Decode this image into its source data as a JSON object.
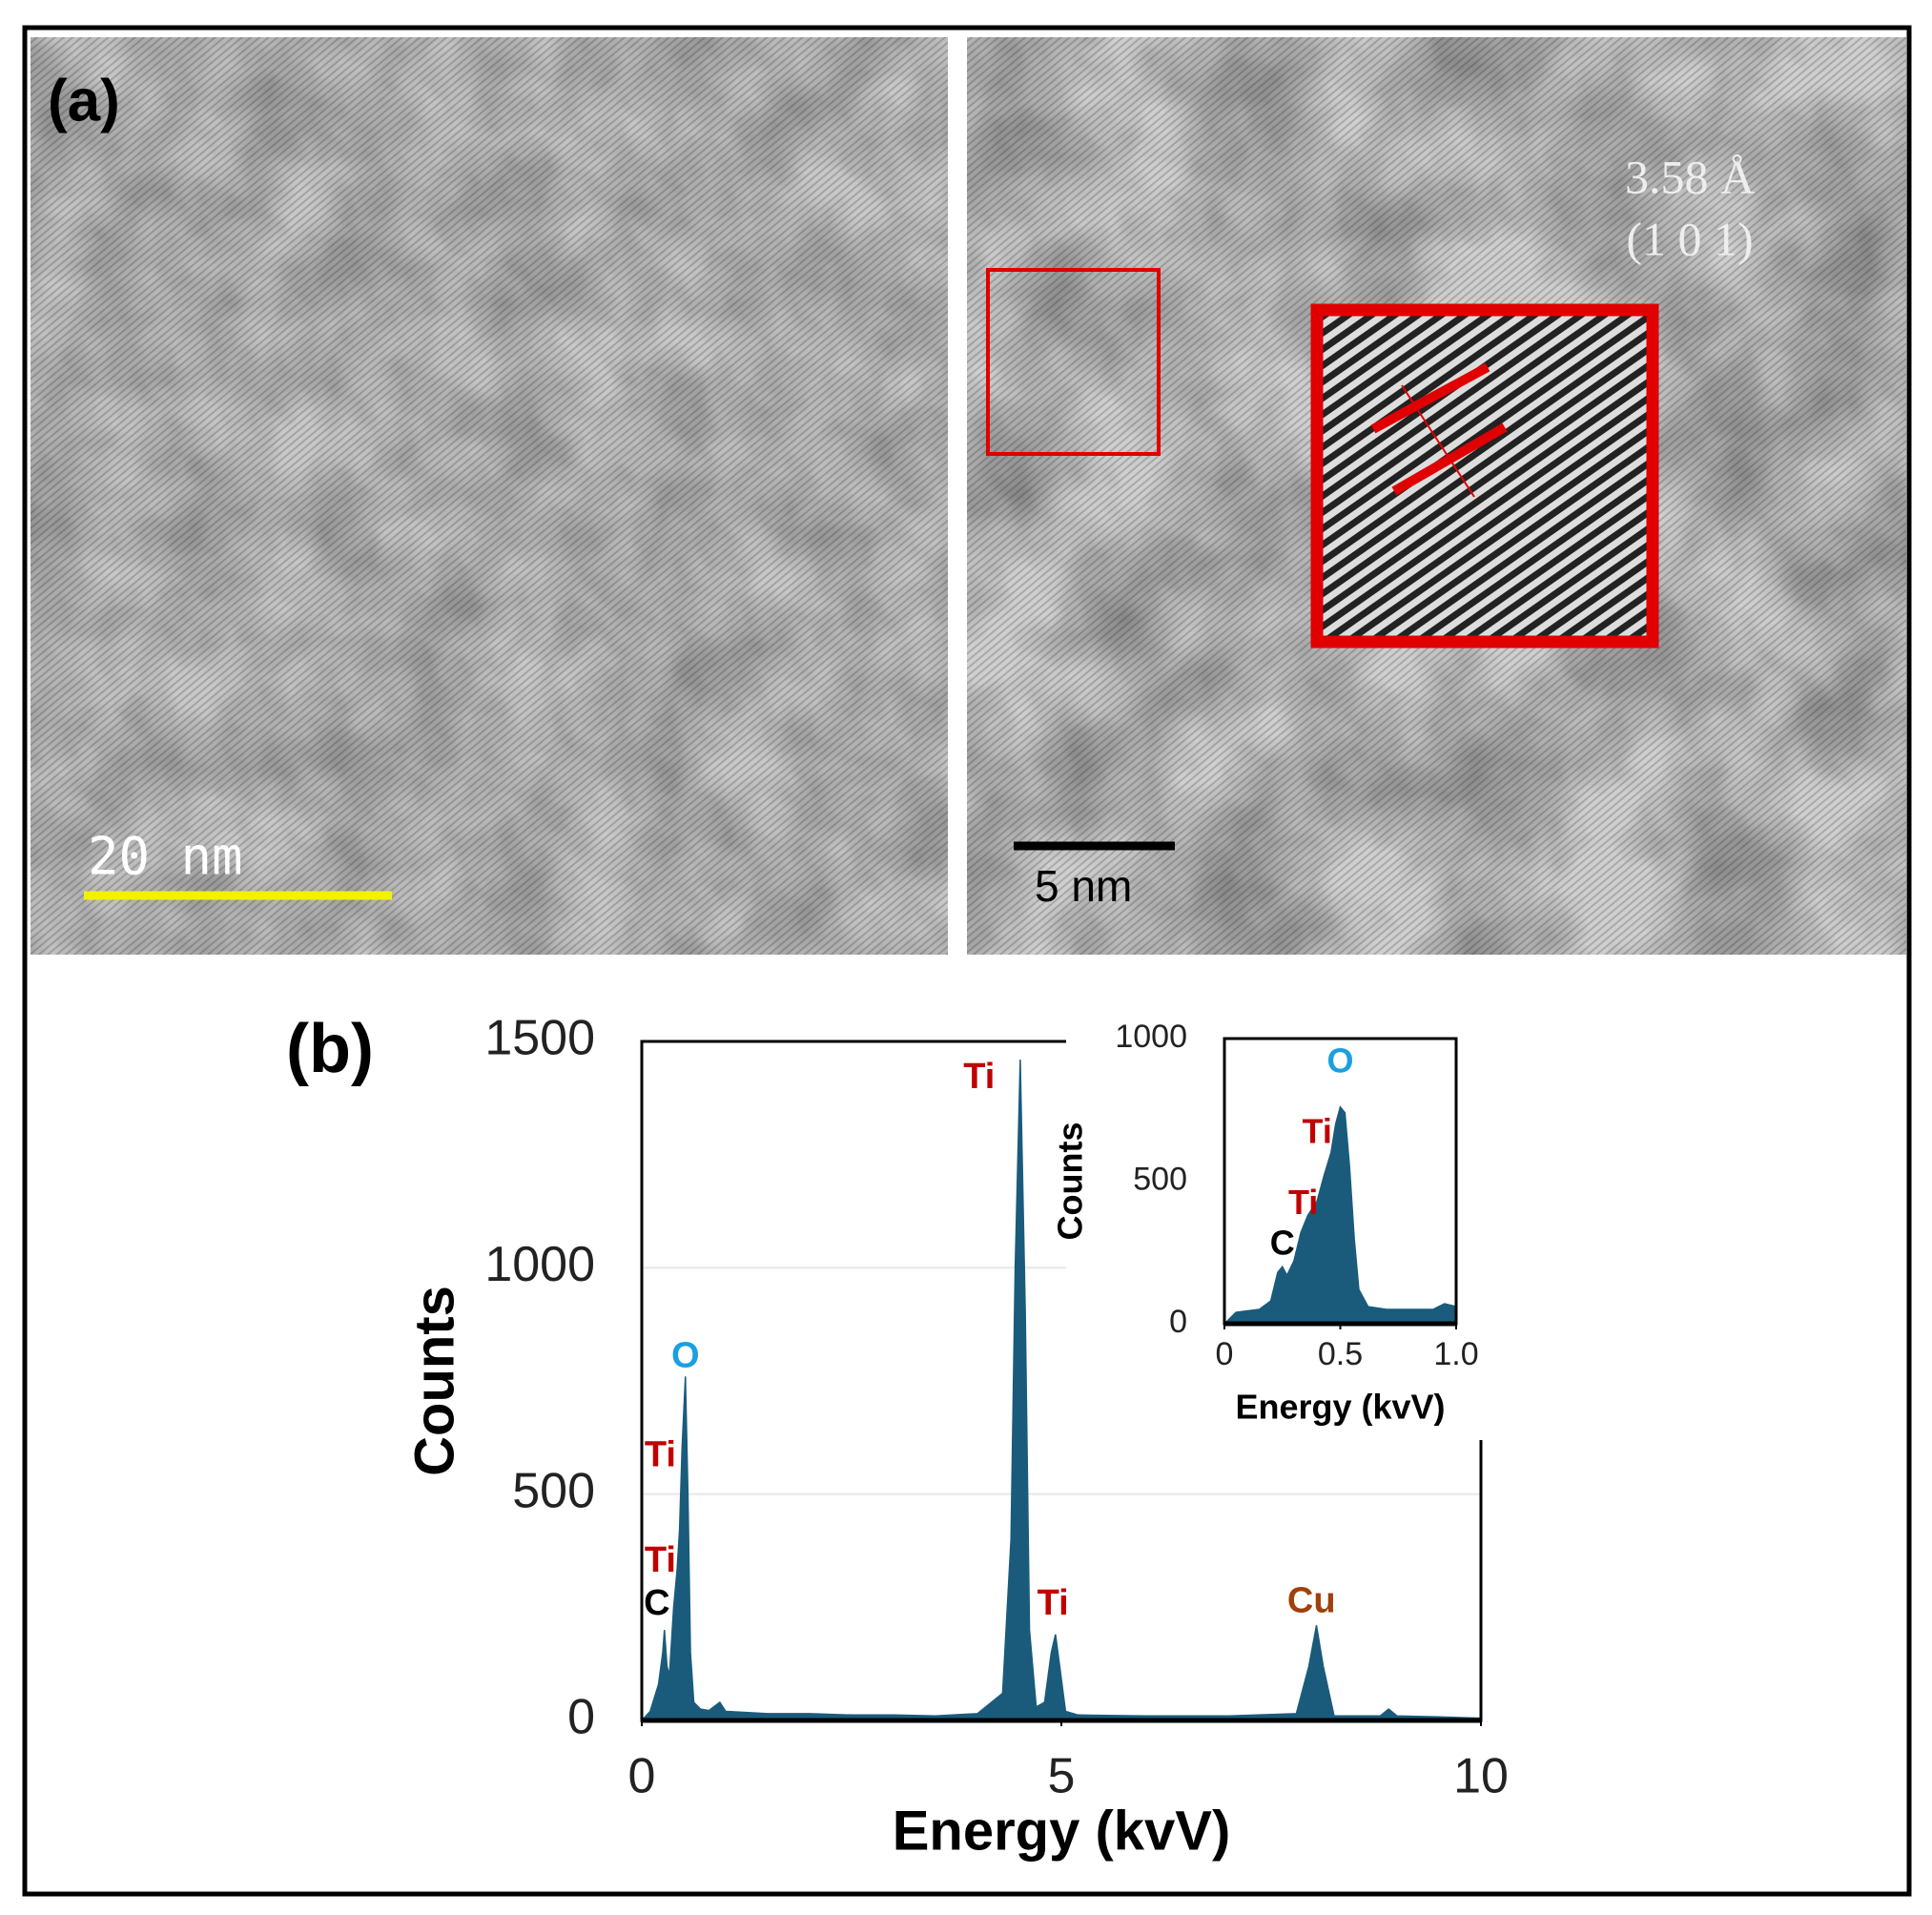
{
  "panel_a": {
    "label": "(a)",
    "scale_left": "20 nm",
    "scale_right": "5 nm",
    "d_spacing": "3.58 Å",
    "plane": "(1 0 1)"
  },
  "panel_b": {
    "label": "(b)"
  },
  "chart_data": [
    {
      "type": "area",
      "x_label": "Energy (kvV)",
      "y_label": "Counts",
      "color": "#1a5b7c",
      "xlim": [
        0,
        10
      ],
      "ylim": [
        0,
        1500
      ],
      "xticks": [
        0,
        5,
        10
      ],
      "yticks": [
        0,
        500,
        1000,
        1500
      ],
      "grid": true,
      "x": [
        0,
        0.1,
        0.2,
        0.25,
        0.27,
        0.3,
        0.33,
        0.38,
        0.42,
        0.45,
        0.48,
        0.52,
        0.55,
        0.58,
        0.62,
        0.7,
        0.8,
        0.93,
        1.0,
        1.5,
        2,
        2.5,
        3,
        3.5,
        4,
        4.3,
        4.4,
        4.45,
        4.51,
        4.57,
        4.62,
        4.7,
        4.8,
        4.88,
        4.93,
        4.98,
        5.05,
        5.2,
        6,
        7,
        7.8,
        7.95,
        8.04,
        8.12,
        8.25,
        8.8,
        8.9,
        9,
        9.5,
        10
      ],
      "values": [
        0,
        20,
        80,
        150,
        200,
        120,
        100,
        250,
        330,
        420,
        600,
        760,
        500,
        150,
        40,
        25,
        22,
        40,
        20,
        15,
        15,
        12,
        12,
        10,
        15,
        60,
        400,
        1000,
        1460,
        900,
        200,
        30,
        40,
        150,
        190,
        120,
        20,
        12,
        10,
        10,
        15,
        120,
        210,
        120,
        10,
        10,
        25,
        10,
        8,
        5
      ],
      "annotations": [
        {
          "text": "Ti",
          "x": 4.02,
          "y": 1418,
          "color": "#c00000"
        },
        {
          "text": "O",
          "x": 0.52,
          "y": 802,
          "color": "#1aa0e0"
        },
        {
          "text": "Ti",
          "x": 0.22,
          "y": 583,
          "color": "#c00000"
        },
        {
          "text": "Ti",
          "x": 0.22,
          "y": 350,
          "color": "#c00000"
        },
        {
          "text": "C",
          "x": 0.18,
          "y": 255,
          "color": "#000000"
        },
        {
          "text": "Ti",
          "x": 4.9,
          "y": 255,
          "color": "#c00000"
        },
        {
          "text": "Cu",
          "x": 7.98,
          "y": 260,
          "color": "#a0400a"
        }
      ]
    },
    {
      "type": "area",
      "x_label": "Energy (kvV)",
      "y_label": "Counts",
      "color": "#1a5b7c",
      "xlim": [
        0,
        1
      ],
      "ylim": [
        0,
        1000
      ],
      "xticks": [
        0,
        0.5,
        {
          "value": 1,
          "label": "1.0"
        }
      ],
      "yticks": [
        0,
        500,
        1000
      ],
      "grid": false,
      "x": [
        0,
        0.05,
        0.1,
        0.15,
        0.2,
        0.23,
        0.25,
        0.27,
        0.3,
        0.33,
        0.36,
        0.4,
        0.43,
        0.46,
        0.48,
        0.5,
        0.52,
        0.54,
        0.56,
        0.58,
        0.62,
        0.7,
        0.8,
        0.9,
        0.95,
        1.0
      ],
      "values": [
        0,
        40,
        45,
        50,
        80,
        180,
        200,
        170,
        220,
        320,
        380,
        430,
        520,
        600,
        700,
        760,
        740,
        550,
        300,
        120,
        60,
        50,
        50,
        50,
        70,
        60
      ],
      "annotations": [
        {
          "text": "C",
          "x": 0.25,
          "y": 274,
          "color": "#000000"
        },
        {
          "text": "Ti",
          "x": 0.34,
          "y": 417,
          "color": "#c00000"
        },
        {
          "text": "Ti",
          "x": 0.4,
          "y": 665,
          "color": "#c00000"
        },
        {
          "text": "O",
          "x": 0.5,
          "y": 913,
          "color": "#1aa0e0"
        }
      ]
    }
  ]
}
